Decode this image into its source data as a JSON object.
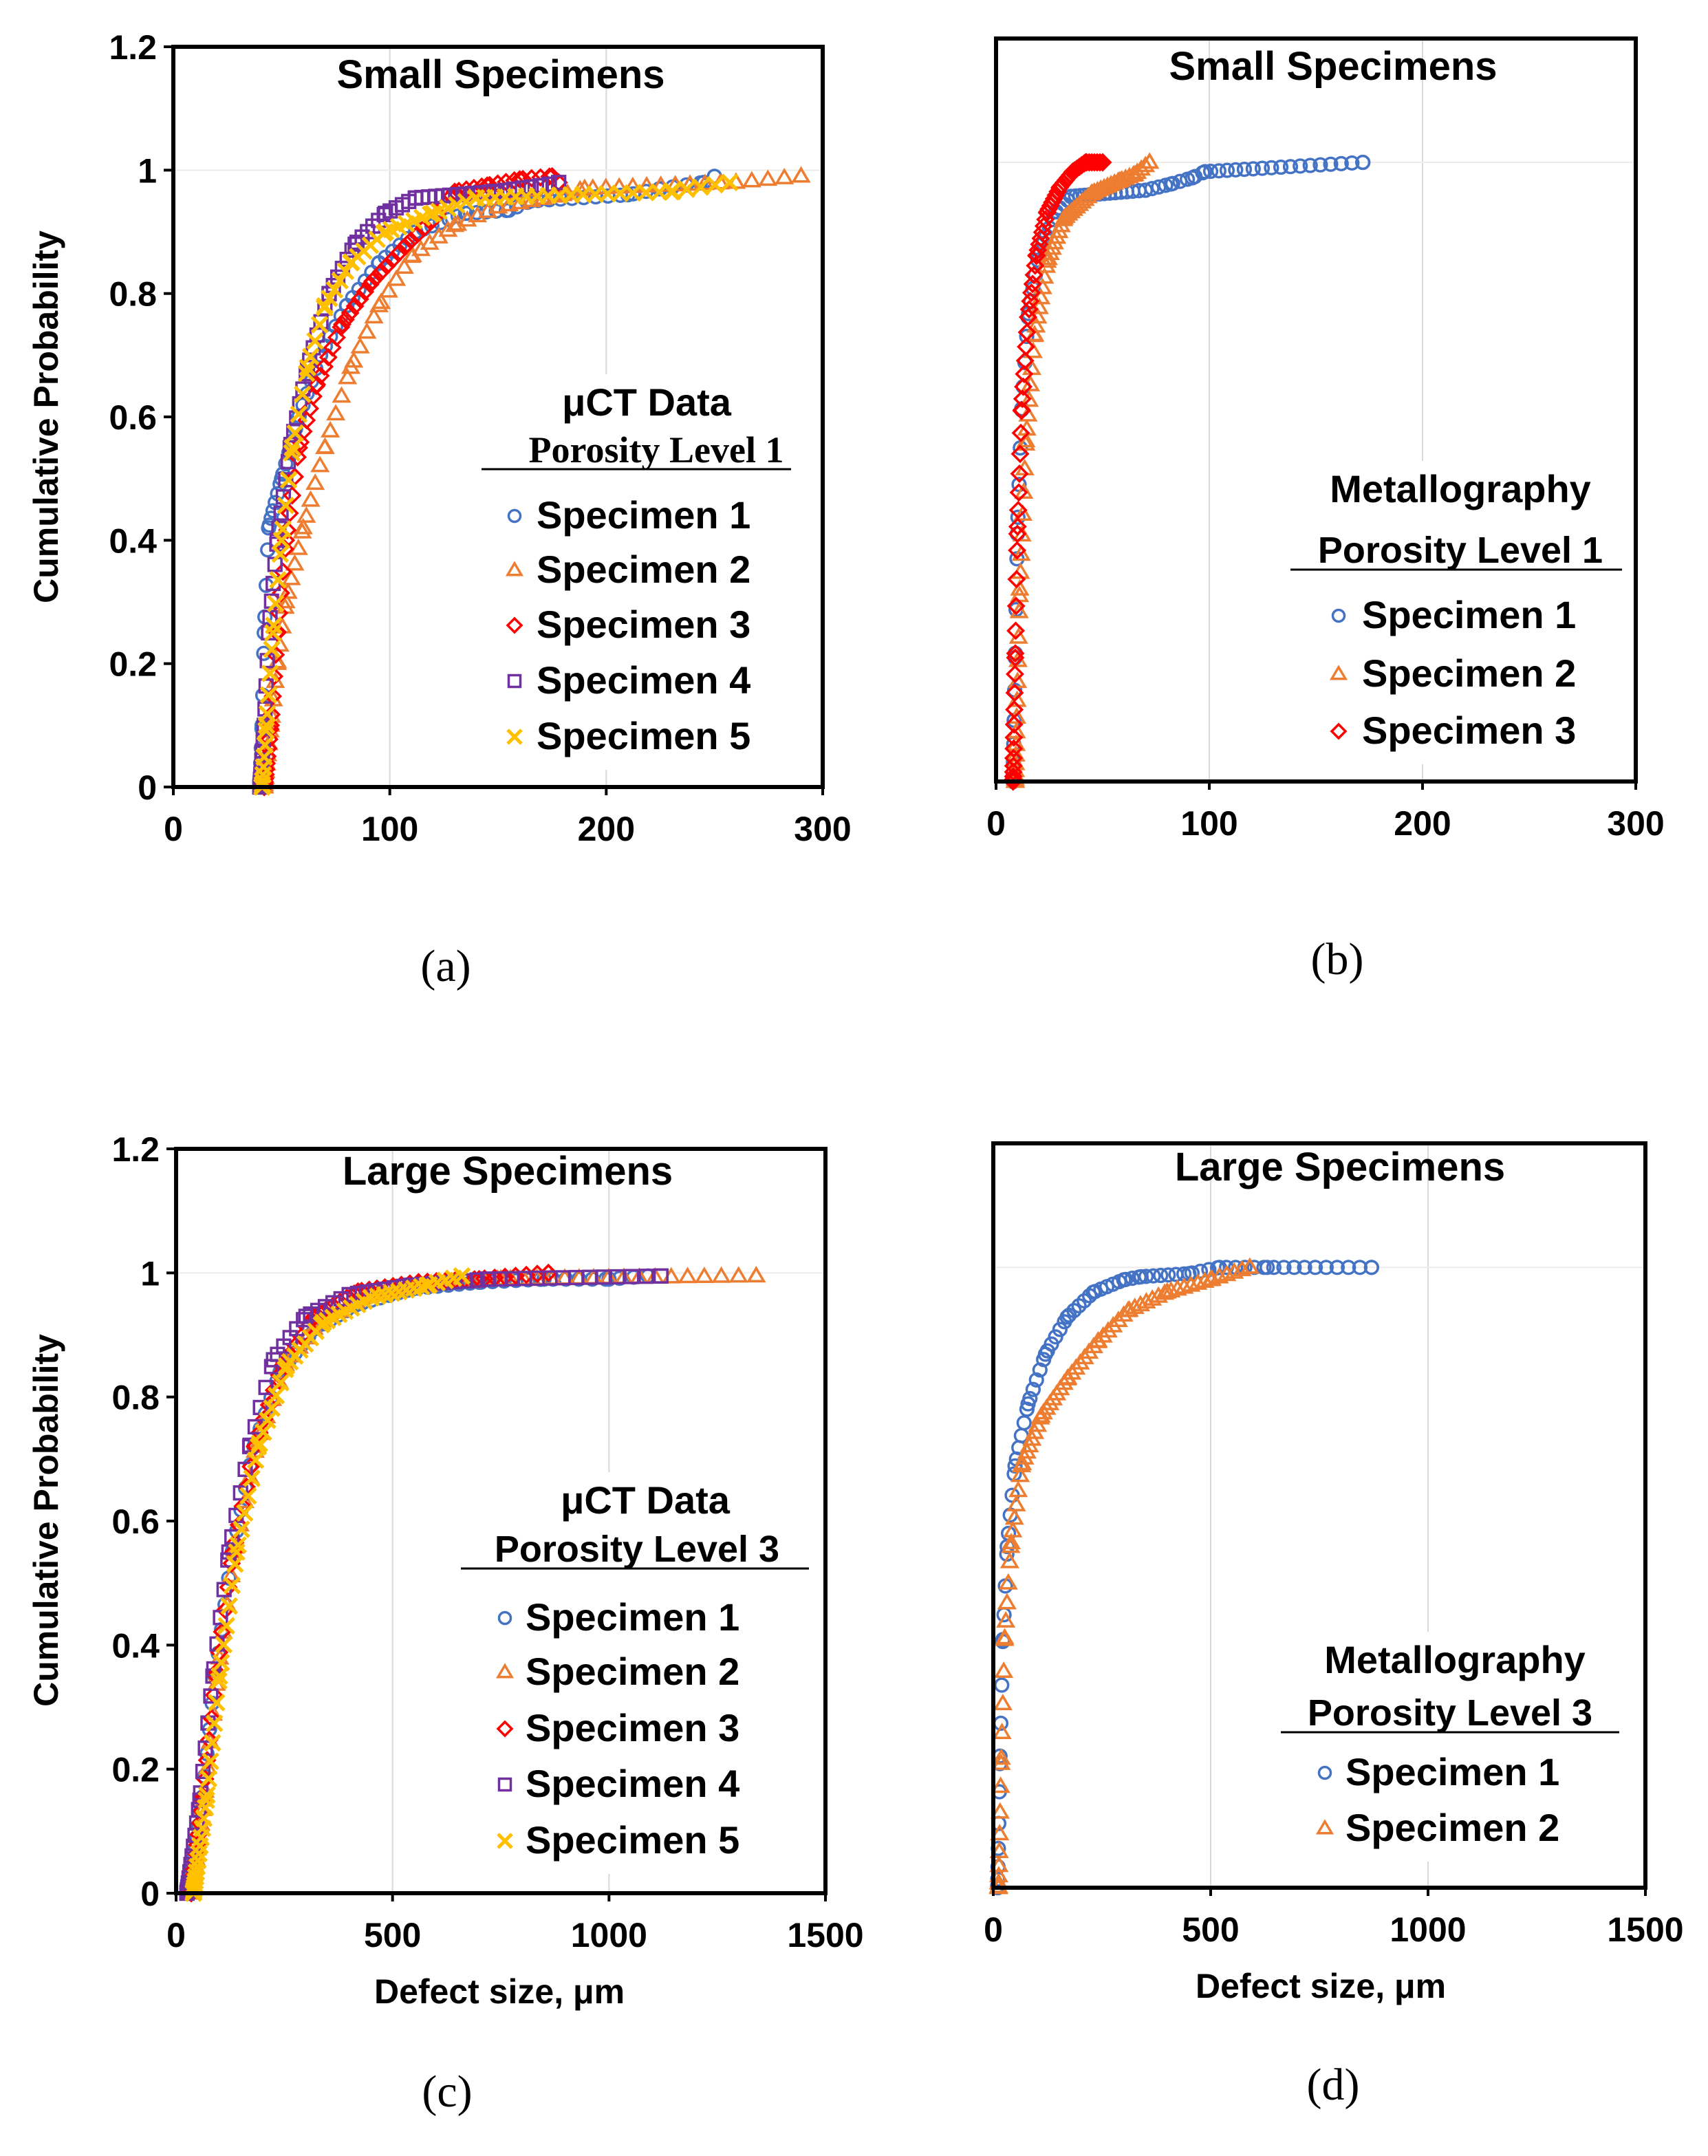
{
  "chart_data": [
    {
      "panel": "(a)",
      "type": "scatter",
      "title": "Small Specimens",
      "xlabel": "",
      "ylabel": "Cumulative Probability",
      "xlim": [
        0,
        300
      ],
      "ylim": [
        0,
        1.2
      ],
      "x_ticks": [
        "0",
        "100",
        "200",
        "300"
      ],
      "y_ticks": [
        "0",
        "0.2",
        "0.4",
        "0.6",
        "0.8",
        "1",
        "1.2"
      ],
      "gridlines": "vertical",
      "legend": {
        "heading": "μCT Data",
        "subheading": "Porosity Level 1",
        "position": "bottom-right"
      },
      "series": [
        {
          "name": "Specimen 1",
          "marker": "circle",
          "color": "#4472C4",
          "points": [
            [
              40,
              0
            ],
            [
              41,
              0.1
            ],
            [
              42,
              0.25
            ],
            [
              44,
              0.42
            ],
            [
              50,
              0.5
            ],
            [
              58,
              0.6
            ],
            [
              68,
              0.7
            ],
            [
              80,
              0.78
            ],
            [
              95,
              0.85
            ],
            [
              112,
              0.9
            ],
            [
              135,
              0.93
            ],
            [
              155,
              0.935
            ],
            [
              165,
              0.95
            ],
            [
              210,
              0.96
            ],
            [
              225,
              0.97
            ],
            [
              245,
              0.98
            ],
            [
              250,
              0.99
            ]
          ]
        },
        {
          "name": "Specimen 2",
          "marker": "triangle",
          "color": "#ED7D31",
          "points": [
            [
              42,
              0
            ],
            [
              45,
              0.1
            ],
            [
              48,
              0.2
            ],
            [
              52,
              0.3
            ],
            [
              60,
              0.42
            ],
            [
              70,
              0.55
            ],
            [
              82,
              0.68
            ],
            [
              95,
              0.78
            ],
            [
              110,
              0.86
            ],
            [
              130,
              0.91
            ],
            [
              150,
              0.94
            ],
            [
              180,
              0.96
            ],
            [
              190,
              0.97
            ],
            [
              260,
              0.98
            ],
            [
              290,
              0.99
            ]
          ]
        },
        {
          "name": "Specimen 3",
          "marker": "diamond",
          "color": "#FF0000",
          "points": [
            [
              42,
              0
            ],
            [
              45,
              0.1
            ],
            [
              48,
              0.25
            ],
            [
              52,
              0.4
            ],
            [
              58,
              0.55
            ],
            [
              66,
              0.65
            ],
            [
              78,
              0.75
            ],
            [
              92,
              0.82
            ],
            [
              108,
              0.88
            ],
            [
              120,
              0.92
            ],
            [
              130,
              0.965
            ],
            [
              145,
              0.975
            ],
            [
              160,
              0.985
            ],
            [
              175,
              0.99
            ],
            [
              178,
              0.98
            ]
          ]
        },
        {
          "name": "Specimen 4",
          "marker": "square",
          "color": "#7030A0",
          "points": [
            [
              40,
              0
            ],
            [
              42,
              0.1
            ],
            [
              44,
              0.25
            ],
            [
              48,
              0.4
            ],
            [
              54,
              0.55
            ],
            [
              62,
              0.68
            ],
            [
              72,
              0.8
            ],
            [
              84,
              0.88
            ],
            [
              98,
              0.93
            ],
            [
              112,
              0.955
            ],
            [
              148,
              0.965
            ],
            [
              170,
              0.975
            ],
            [
              178,
              0.98
            ]
          ]
        },
        {
          "name": "Specimen 5",
          "marker": "x",
          "color": "#FFC000",
          "points": [
            [
              41,
              0
            ],
            [
              43,
              0.1
            ],
            [
              46,
              0.25
            ],
            [
              50,
              0.4
            ],
            [
              55,
              0.55
            ],
            [
              62,
              0.68
            ],
            [
              70,
              0.78
            ],
            [
              82,
              0.85
            ],
            [
              98,
              0.9
            ],
            [
              120,
              0.93
            ],
            [
              140,
              0.955
            ],
            [
              230,
              0.965
            ],
            [
              257,
              0.98
            ]
          ]
        }
      ]
    },
    {
      "panel": "(b)",
      "type": "scatter",
      "title": "Small Specimens",
      "xlabel": "",
      "ylabel": "",
      "xlim": [
        0,
        300
      ],
      "ylim": [
        0,
        1.2
      ],
      "x_ticks": [
        "0",
        "100",
        "200",
        "300"
      ],
      "y_ticks": [],
      "gridlines": "vertical",
      "legend": {
        "heading": "Metallography",
        "subheading": "Porosity Level 1",
        "position": "bottom-right"
      },
      "series": [
        {
          "name": "Specimen 1",
          "marker": "circle",
          "color": "#4472C4",
          "points": [
            [
              8,
              0
            ],
            [
              9,
              0.2
            ],
            [
              10,
              0.4
            ],
            [
              12,
              0.6
            ],
            [
              15,
              0.75
            ],
            [
              20,
              0.85
            ],
            [
              28,
              0.92
            ],
            [
              35,
              0.945
            ],
            [
              70,
              0.955
            ],
            [
              82,
              0.965
            ],
            [
              92,
              0.975
            ],
            [
              98,
              0.985
            ],
            [
              172,
              1.0
            ]
          ]
        },
        {
          "name": "Specimen 2",
          "marker": "triangle",
          "color": "#ED7D31",
          "points": [
            [
              9,
              0
            ],
            [
              11,
              0.3
            ],
            [
              14,
              0.55
            ],
            [
              18,
              0.72
            ],
            [
              24,
              0.84
            ],
            [
              32,
              0.91
            ],
            [
              45,
              0.95
            ],
            [
              58,
              0.97
            ],
            [
              65,
              0.98
            ],
            [
              72,
              1.0
            ]
          ]
        },
        {
          "name": "Specimen 3",
          "marker": "diamond",
          "color": "#FF0000",
          "points": [
            [
              8,
              0
            ],
            [
              9,
              0.2
            ],
            [
              10,
              0.4
            ],
            [
              12,
              0.6
            ],
            [
              15,
              0.75
            ],
            [
              19,
              0.85
            ],
            [
              24,
              0.92
            ],
            [
              30,
              0.96
            ],
            [
              36,
              0.985
            ],
            [
              42,
              1.0
            ],
            [
              50,
              1.0
            ]
          ]
        }
      ]
    },
    {
      "panel": "(c)",
      "type": "scatter",
      "title": "Large Specimens",
      "xlabel": "Defect size, μm",
      "ylabel": "Cumulative Probability",
      "xlim": [
        0,
        1500
      ],
      "ylim": [
        0,
        1.2
      ],
      "x_ticks": [
        "0",
        "500",
        "1000",
        "1500"
      ],
      "y_ticks": [
        "0",
        "0.2",
        "0.4",
        "0.6",
        "0.8",
        "1",
        "1.2"
      ],
      "gridlines": "vertical",
      "legend": {
        "heading": "μCT Data",
        "subheading": "Porosity Level 3",
        "position": "bottom-right"
      },
      "series": [
        {
          "name": "Specimen 1",
          "marker": "circle",
          "color": "#4472C4",
          "points": [
            [
              30,
              0
            ],
            [
              60,
              0.15
            ],
            [
              90,
              0.35
            ],
            [
              130,
              0.55
            ],
            [
              180,
              0.72
            ],
            [
              240,
              0.84
            ],
            [
              320,
              0.91
            ],
            [
              420,
              0.95
            ],
            [
              550,
              0.975
            ],
            [
              700,
              0.985
            ],
            [
              850,
              0.99
            ],
            [
              1000,
              0.99
            ],
            [
              1090,
              0.995
            ]
          ]
        },
        {
          "name": "Specimen 2",
          "marker": "triangle",
          "color": "#ED7D31",
          "points": [
            [
              35,
              0
            ],
            [
              65,
              0.15
            ],
            [
              95,
              0.35
            ],
            [
              135,
              0.55
            ],
            [
              185,
              0.72
            ],
            [
              250,
              0.85
            ],
            [
              330,
              0.92
            ],
            [
              430,
              0.96
            ],
            [
              560,
              0.98
            ],
            [
              750,
              0.99
            ],
            [
              1340,
              0.995
            ]
          ]
        },
        {
          "name": "Specimen 3",
          "marker": "diamond",
          "color": "#FF0000",
          "points": [
            [
              35,
              0
            ],
            [
              62,
              0.15
            ],
            [
              92,
              0.35
            ],
            [
              132,
              0.55
            ],
            [
              182,
              0.72
            ],
            [
              245,
              0.85
            ],
            [
              320,
              0.93
            ],
            [
              420,
              0.97
            ],
            [
              560,
              0.985
            ],
            [
              700,
              0.99
            ],
            [
              860,
              1.0
            ]
          ]
        },
        {
          "name": "Specimen 4",
          "marker": "square",
          "color": "#7030A0",
          "points": [
            [
              25,
              0
            ],
            [
              55,
              0.15
            ],
            [
              85,
              0.35
            ],
            [
              122,
              0.55
            ],
            [
              170,
              0.72
            ],
            [
              225,
              0.86
            ],
            [
              300,
              0.93
            ],
            [
              400,
              0.965
            ],
            [
              540,
              0.98
            ],
            [
              720,
              0.99
            ],
            [
              1120,
              0.995
            ]
          ]
        },
        {
          "name": "Specimen 5",
          "marker": "x",
          "color": "#FFC000",
          "points": [
            [
              40,
              0
            ],
            [
              70,
              0.15
            ],
            [
              100,
              0.35
            ],
            [
              140,
              0.55
            ],
            [
              190,
              0.72
            ],
            [
              255,
              0.85
            ],
            [
              340,
              0.92
            ],
            [
              450,
              0.96
            ],
            [
              580,
              0.98
            ],
            [
              660,
              0.995
            ]
          ]
        }
      ]
    },
    {
      "panel": "(d)",
      "type": "scatter",
      "title": "Large Specimens",
      "xlabel": "Defect size, μm",
      "ylabel": "",
      "xlim": [
        0,
        1500
      ],
      "ylim": [
        0,
        1.2
      ],
      "x_ticks": [
        "0",
        "500",
        "1000",
        "1500"
      ],
      "y_ticks": [],
      "gridlines": "vertical",
      "legend": {
        "heading": "Metallography",
        "subheading": "Porosity Level 3",
        "position": "bottom-right"
      },
      "series": [
        {
          "name": "Specimen 1",
          "marker": "circle",
          "color": "#4472C4",
          "points": [
            [
              10,
              0
            ],
            [
              15,
              0.2
            ],
            [
              22,
              0.4
            ],
            [
              32,
              0.55
            ],
            [
              50,
              0.68
            ],
            [
              80,
              0.78
            ],
            [
              120,
              0.86
            ],
            [
              170,
              0.92
            ],
            [
              230,
              0.96
            ],
            [
              300,
              0.98
            ],
            [
              340,
              0.985
            ],
            [
              450,
              0.99
            ],
            [
              520,
              1.0
            ],
            [
              630,
              1.0
            ],
            [
              870,
              1.0
            ]
          ]
        },
        {
          "name": "Specimen 2",
          "marker": "triangle",
          "color": "#ED7D31",
          "points": [
            [
              12,
              0
            ],
            [
              18,
              0.2
            ],
            [
              26,
              0.4
            ],
            [
              40,
              0.55
            ],
            [
              65,
              0.68
            ],
            [
              110,
              0.76
            ],
            [
              170,
              0.82
            ],
            [
              240,
              0.88
            ],
            [
              310,
              0.93
            ],
            [
              400,
              0.96
            ],
            [
              500,
              0.98
            ],
            [
              590,
              1.0
            ]
          ]
        }
      ]
    }
  ],
  "panel_labels": [
    "(a)",
    "(b)",
    "(c)",
    "(d)"
  ]
}
